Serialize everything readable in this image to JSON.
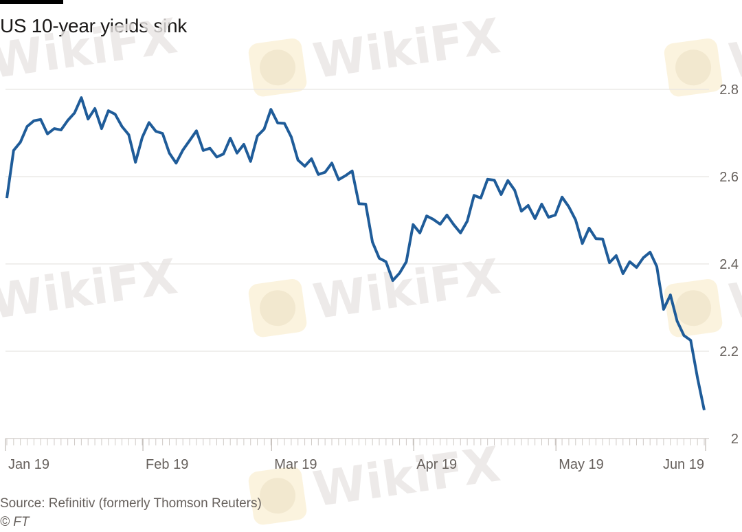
{
  "watermark": "WikiFX",
  "chart_data": {
    "type": "line",
    "title": "US 10-year yields sink",
    "xlabel": "",
    "ylabel": "",
    "ylim": [
      2,
      2.8
    ],
    "yticks": [
      {
        "value": 2,
        "label": "2"
      },
      {
        "value": 2.2,
        "label": "2.2"
      },
      {
        "value": 2.4,
        "label": "2.4"
      },
      {
        "value": 2.6,
        "label": "2.6"
      },
      {
        "value": 2.8,
        "label": "2.8"
      }
    ],
    "x_unit": "trading day index",
    "xlim": [
      -0.2,
      103.2
    ],
    "xticks": [
      {
        "index": -0.2,
        "label": "Jan 19"
      },
      {
        "index": 20.1,
        "label": "Feb 19"
      },
      {
        "index": 39.1,
        "label": "Mar 19"
      },
      {
        "index": 60.1,
        "label": "Apr 19"
      },
      {
        "index": 81.1,
        "label": "May 19"
      },
      {
        "index": 103.2,
        "label": "Jun 19"
      }
    ],
    "grid": true,
    "series": [
      {
        "name": "US 10-year yield",
        "color": "#1f5c99",
        "values": [
          2.551,
          2.66,
          2.679,
          2.715,
          2.728,
          2.731,
          2.698,
          2.71,
          2.707,
          2.729,
          2.746,
          2.781,
          2.732,
          2.756,
          2.71,
          2.751,
          2.743,
          2.715,
          2.696,
          2.633,
          2.69,
          2.724,
          2.704,
          2.699,
          2.654,
          2.631,
          2.661,
          2.683,
          2.705,
          2.66,
          2.665,
          2.645,
          2.652,
          2.688,
          2.654,
          2.674,
          2.635,
          2.693,
          2.709,
          2.754,
          2.723,
          2.722,
          2.691,
          2.638,
          2.624,
          2.641,
          2.605,
          2.61,
          2.631,
          2.593,
          2.602,
          2.613,
          2.538,
          2.537,
          2.45,
          2.413,
          2.405,
          2.362,
          2.379,
          2.405,
          2.49,
          2.471,
          2.51,
          2.502,
          2.491,
          2.512,
          2.49,
          2.471,
          2.498,
          2.557,
          2.551,
          2.594,
          2.592,
          2.559,
          2.591,
          2.569,
          2.521,
          2.534,
          2.504,
          2.537,
          2.507,
          2.512,
          2.553,
          2.531,
          2.501,
          2.447,
          2.482,
          2.458,
          2.457,
          2.403,
          2.419,
          2.378,
          2.405,
          2.392,
          2.414,
          2.427,
          2.394,
          2.296,
          2.329,
          2.269,
          2.236,
          2.225,
          2.139,
          2.065
        ]
      }
    ],
    "source": "Source: Refinitiv (formerly Thomson Reuters)",
    "credit": "© FT"
  }
}
